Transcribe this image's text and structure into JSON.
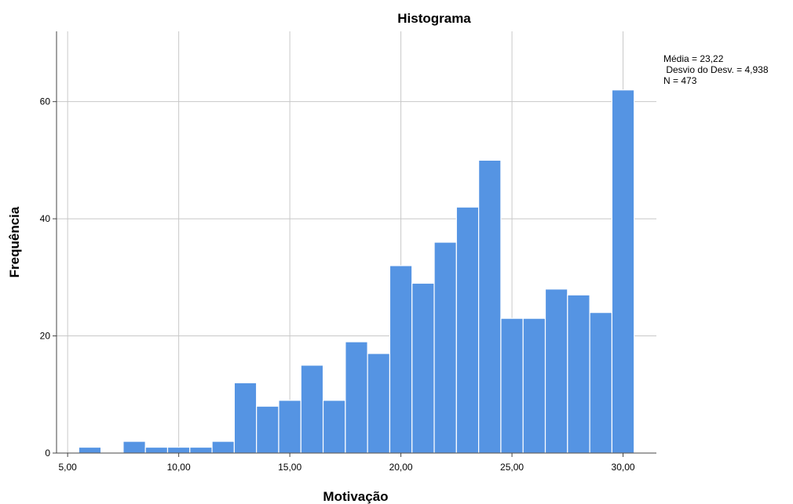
{
  "chart_data": {
    "type": "bar",
    "title": "Histograma",
    "xlabel": "Motivação",
    "ylabel": "Frequência",
    "xlim": [
      4.5,
      31.5
    ],
    "ylim": [
      0,
      72
    ],
    "grid": true,
    "bar_color": "#5594e3",
    "x_ticks": [
      {
        "value": 5,
        "label": "5,00"
      },
      {
        "value": 10,
        "label": "10,00"
      },
      {
        "value": 15,
        "label": "15,00"
      },
      {
        "value": 20,
        "label": "20,00"
      },
      {
        "value": 25,
        "label": "25,00"
      },
      {
        "value": 30,
        "label": "30,00"
      }
    ],
    "y_ticks": [
      {
        "value": 0,
        "label": "0"
      },
      {
        "value": 20,
        "label": "20"
      },
      {
        "value": 40,
        "label": "40"
      },
      {
        "value": 60,
        "label": "60"
      }
    ],
    "bins": [
      {
        "start": 5.5,
        "end": 6.5,
        "count": 1
      },
      {
        "start": 6.5,
        "end": 7.5,
        "count": 0
      },
      {
        "start": 7.5,
        "end": 8.5,
        "count": 2
      },
      {
        "start": 8.5,
        "end": 9.5,
        "count": 1
      },
      {
        "start": 9.5,
        "end": 10.5,
        "count": 1
      },
      {
        "start": 10.5,
        "end": 11.5,
        "count": 1
      },
      {
        "start": 11.5,
        "end": 12.5,
        "count": 2
      },
      {
        "start": 12.5,
        "end": 13.5,
        "count": 12
      },
      {
        "start": 13.5,
        "end": 14.5,
        "count": 8
      },
      {
        "start": 14.5,
        "end": 15.5,
        "count": 9
      },
      {
        "start": 15.5,
        "end": 16.5,
        "count": 15
      },
      {
        "start": 16.5,
        "end": 17.5,
        "count": 9
      },
      {
        "start": 17.5,
        "end": 18.5,
        "count": 19
      },
      {
        "start": 18.5,
        "end": 19.5,
        "count": 17
      },
      {
        "start": 19.5,
        "end": 20.5,
        "count": 32
      },
      {
        "start": 20.5,
        "end": 21.5,
        "count": 29
      },
      {
        "start": 21.5,
        "end": 22.5,
        "count": 36
      },
      {
        "start": 22.5,
        "end": 23.5,
        "count": 42
      },
      {
        "start": 23.5,
        "end": 24.5,
        "count": 50
      },
      {
        "start": 24.5,
        "end": 25.5,
        "count": 23
      },
      {
        "start": 25.5,
        "end": 26.5,
        "count": 23
      },
      {
        "start": 26.5,
        "end": 27.5,
        "count": 28
      },
      {
        "start": 27.5,
        "end": 28.5,
        "count": 27
      },
      {
        "start": 28.5,
        "end": 29.5,
        "count": 24
      },
      {
        "start": 29.5,
        "end": 30.5,
        "count": 62
      }
    ],
    "stats": {
      "mean": "Média = 23,22",
      "std_dev": " Desvio do Desv. = 4,938",
      "n": "N = 473"
    }
  }
}
